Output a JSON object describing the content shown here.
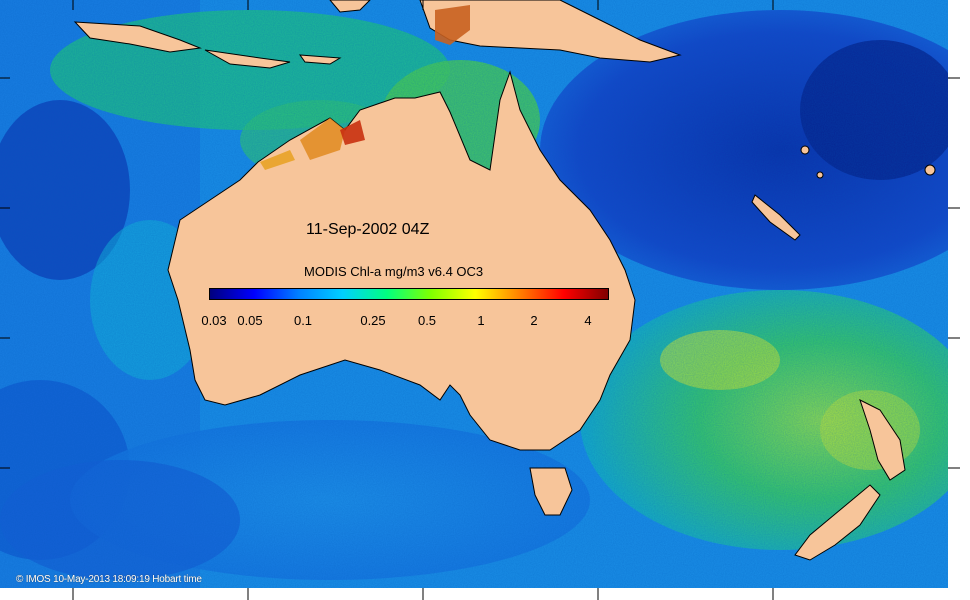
{
  "map": {
    "date": "11-Sep-2002 04Z",
    "colorbar": {
      "title": "MODIS Chl-a mg/m3 v6.4 OC3",
      "ticks": [
        "0.03",
        "0.05",
        "0.1",
        "0.25",
        "0.5",
        "1",
        "2",
        "4"
      ],
      "colors": [
        "#00007f",
        "#0000ff",
        "#0080ff",
        "#00d0ff",
        "#00ff80",
        "#80ff00",
        "#ffff00",
        "#ff8000",
        "#ff0000",
        "#7f0000"
      ]
    },
    "copyright": "© IMOS 10-May-2013 18:09:19 Hobart time",
    "land_color": "#f7c59a",
    "ocean_colors": {
      "deep_blue": "#0a2fb0",
      "blue": "#1566e8",
      "cyan": "#12a8e0",
      "green": "#2fcf5a",
      "yellow": "#d8e82a"
    }
  }
}
